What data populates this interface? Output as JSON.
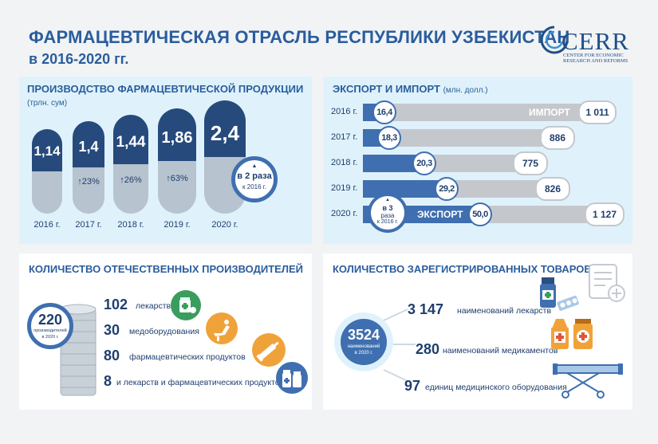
{
  "header": {
    "title_line1": "ФАРМАЦЕВТИЧЕСКАЯ ОТРАСЛЬ РЕСПУБЛИКИ УЗБЕКИСТАН",
    "title_line2": "в 2016-2020 гг.",
    "logo_word": "CERR",
    "logo_sub": "CENTER FOR ECONOMIC RESEARCH AND REFORMS"
  },
  "production": {
    "title": "ПРОИЗВОДСТВО ФАРМАЦЕВТИЧЕСКОЙ ПРОДУКЦИИ",
    "unit": "(трлн. сум)",
    "items": [
      {
        "year": "2016 г.",
        "value": "1,14",
        "growth": ""
      },
      {
        "year": "2017 г.",
        "value": "1,4",
        "growth": "↑23%"
      },
      {
        "year": "2018 г.",
        "value": "1,44",
        "growth": "↑26%"
      },
      {
        "year": "2019 г.",
        "value": "1,86",
        "growth": "↑63%"
      },
      {
        "year": "2020 г.",
        "value": "2,4",
        "growth": ""
      }
    ],
    "badge_line1": "в 2 раза",
    "badge_line2": "к 2016 г."
  },
  "trade": {
    "title": "ЭКСПОРТ И ИМПОРТ",
    "unit": "(млн. долл.)",
    "import_label": "ИМПОРТ",
    "export_label": "ЭКСПОРТ",
    "rows": [
      {
        "year": "2016 г.",
        "export": "16,4",
        "import": "1 011"
      },
      {
        "year": "2017 г.",
        "export": "18,3",
        "import": "886"
      },
      {
        "year": "2018 г.",
        "export": "20,3",
        "import": "775"
      },
      {
        "year": "2019 г.",
        "export": "29,2",
        "import": "826"
      },
      {
        "year": "2020 г.",
        "export": "50,0",
        "import": "1 127"
      }
    ],
    "badge_line1": "в 3",
    "badge_line2": "раза",
    "badge_line3": "к 2016 г."
  },
  "producers": {
    "title": "КОЛИЧЕСТВО ОТЕЧЕСТВЕННЫХ ПРОИЗВОДИТЕЛЕЙ",
    "total": "220",
    "total_sub1": "производителей",
    "total_sub2": "в 2020 г.",
    "items": [
      {
        "num": "102",
        "label": "лекарств",
        "color": "#3a9d5d"
      },
      {
        "num": "30",
        "label": "медоборудования",
        "color": "#f0a23a"
      },
      {
        "num": "80",
        "label": "фармацевтических продуктов",
        "color": "#f0a23a"
      },
      {
        "num": "8",
        "label": "и лекарств и фармацевтических продуктов",
        "color": "#3f6fb0"
      }
    ]
  },
  "goods": {
    "title": "КОЛИЧЕСТВО ЗАРЕГИСТРИРОВАННЫХ ТОВАРОВ",
    "total": "3524",
    "total_sub1": "наименований",
    "total_sub2": "в 2020 г.",
    "items": [
      {
        "num": "3 147",
        "label": "наименований лекарств"
      },
      {
        "num": "280",
        "label": "наименований медикаментов"
      },
      {
        "num": "97",
        "label": "единиц медицинского оборудования"
      }
    ]
  }
}
